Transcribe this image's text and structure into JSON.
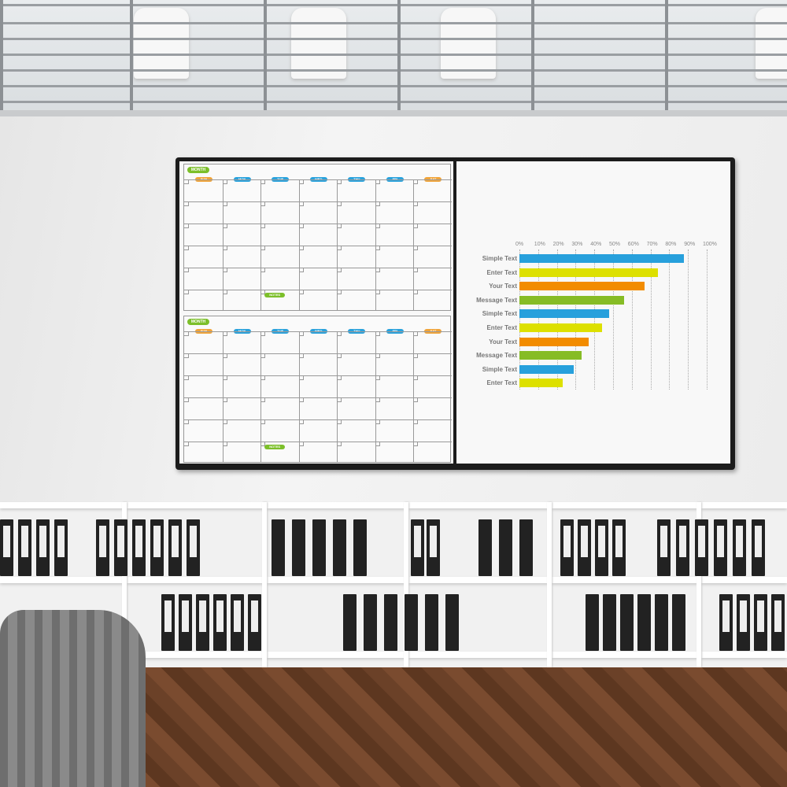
{
  "whiteboard": {
    "calendars": [
      {
        "month_label": "MONTH",
        "days": [
          "SUN",
          "MON",
          "TUE",
          "WED",
          "THU",
          "FRI",
          "SAT"
        ],
        "notes_label": "NOTES"
      },
      {
        "month_label": "MONTH",
        "days": [
          "SUN",
          "MON",
          "TUE",
          "WED",
          "THU",
          "FRI",
          "SAT"
        ],
        "notes_label": "NOTES"
      }
    ],
    "day_colors": {
      "weekend": "#f0a43a",
      "weekday": "#2aa2dc",
      "month": "#7cbf2a"
    }
  },
  "chart_data": {
    "type": "bar",
    "orientation": "horizontal",
    "categories": [
      "Simple Text",
      "Enter Text",
      "Your Text",
      "Message Text",
      "Simple Text",
      "Enter Text",
      "Your Text",
      "Message Text",
      "Simple Text",
      "Enter Text"
    ],
    "values": [
      88,
      74,
      67,
      56,
      48,
      44,
      37,
      33,
      29,
      23
    ],
    "colors": [
      "#27a0dc",
      "#dde000",
      "#f28c00",
      "#86bc25",
      "#27a0dc",
      "#dde000",
      "#f28c00",
      "#86bc25",
      "#27a0dc",
      "#dde000"
    ],
    "xticks": [
      "0%",
      "10%",
      "20%",
      "30%",
      "40%",
      "50%",
      "60%",
      "70%",
      "80%",
      "90%",
      "100%"
    ],
    "xlim": [
      0,
      100
    ],
    "grid": true
  }
}
